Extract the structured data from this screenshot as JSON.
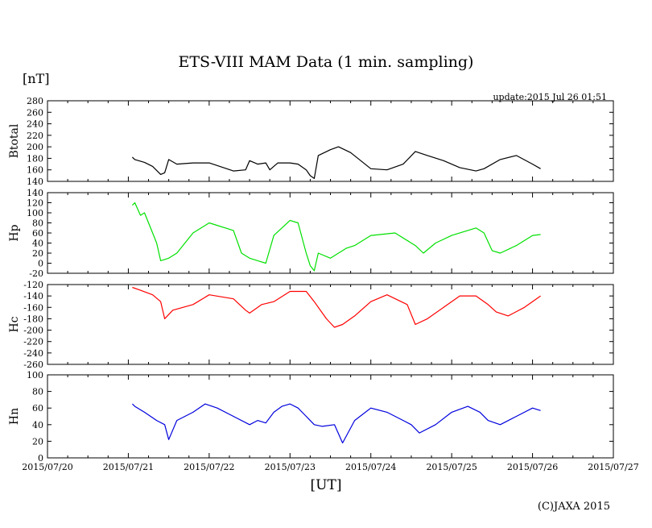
{
  "chart_data": {
    "type": "line",
    "title": "ETS-VIII MAM Data (1 min. sampling)",
    "unit": "[nT]",
    "update": "update:2015 Jul 26 01:51",
    "xlabel": "[UT]",
    "copyright": "(C)JAXA 2015",
    "x_range": [
      0,
      7
    ],
    "x_ticks": [
      "2015/07/20",
      "2015/07/21",
      "2015/07/22",
      "2015/07/23",
      "2015/07/24",
      "2015/07/25",
      "2015/07/26",
      "2015/07/27"
    ],
    "grid": false,
    "panels": [
      {
        "label": "Btotal",
        "color": "#000000",
        "ylim": [
          140,
          280
        ],
        "yticks": [
          140,
          160,
          180,
          200,
          220,
          240,
          260,
          280
        ],
        "x": [
          1.05,
          1.08,
          1.2,
          1.3,
          1.4,
          1.45,
          1.5,
          1.6,
          1.8,
          2.0,
          2.3,
          2.45,
          2.5,
          2.6,
          2.7,
          2.75,
          2.85,
          3.0,
          3.1,
          3.2,
          3.25,
          3.3,
          3.35,
          3.5,
          3.6,
          3.75,
          4.0,
          4.2,
          4.4,
          4.55,
          4.7,
          4.9,
          5.1,
          5.3,
          5.4,
          5.6,
          5.8,
          6.0,
          6.1
        ],
        "y": [
          182,
          178,
          173,
          166,
          152,
          155,
          178,
          170,
          172,
          172,
          158,
          160,
          176,
          170,
          172,
          160,
          172,
          172,
          170,
          160,
          150,
          145,
          185,
          195,
          200,
          190,
          162,
          160,
          170,
          192,
          185,
          176,
          164,
          158,
          162,
          178,
          185,
          170,
          162
        ]
      },
      {
        "label": "Hp",
        "color": "#00e000",
        "ylim": [
          -20,
          140
        ],
        "yticks": [
          -20,
          0,
          20,
          40,
          60,
          80,
          100,
          120,
          140
        ],
        "x": [
          1.05,
          1.08,
          1.15,
          1.2,
          1.3,
          1.35,
          1.4,
          1.5,
          1.6,
          1.8,
          2.0,
          2.3,
          2.4,
          2.5,
          2.6,
          2.7,
          2.8,
          3.0,
          3.1,
          3.2,
          3.25,
          3.3,
          3.35,
          3.5,
          3.7,
          3.8,
          4.0,
          4.3,
          4.55,
          4.65,
          4.8,
          5.0,
          5.3,
          5.4,
          5.5,
          5.6,
          5.8,
          6.0,
          6.1
        ],
        "y": [
          115,
          120,
          95,
          100,
          60,
          40,
          5,
          10,
          20,
          60,
          80,
          65,
          20,
          10,
          5,
          0,
          55,
          85,
          80,
          20,
          -5,
          -15,
          20,
          10,
          30,
          35,
          55,
          60,
          35,
          20,
          40,
          55,
          70,
          60,
          25,
          20,
          35,
          55,
          57
        ]
      },
      {
        "label": "Hc",
        "color": "#ff0000",
        "ylim": [
          -260,
          -120
        ],
        "yticks": [
          -260,
          -240,
          -220,
          -200,
          -180,
          -160,
          -140,
          -120
        ],
        "x": [
          1.05,
          1.15,
          1.3,
          1.4,
          1.45,
          1.55,
          1.8,
          2.0,
          2.3,
          2.45,
          2.5,
          2.65,
          2.8,
          3.0,
          3.2,
          3.3,
          3.45,
          3.55,
          3.65,
          3.8,
          4.0,
          4.2,
          4.45,
          4.55,
          4.7,
          4.9,
          5.1,
          5.3,
          5.45,
          5.55,
          5.7,
          5.9,
          6.1
        ],
        "y": [
          -125,
          -130,
          -138,
          -150,
          -180,
          -165,
          -155,
          -138,
          -145,
          -165,
          -170,
          -155,
          -150,
          -132,
          -132,
          -150,
          -180,
          -195,
          -190,
          -175,
          -150,
          -138,
          -155,
          -190,
          -180,
          -160,
          -140,
          -140,
          -155,
          -168,
          -175,
          -160,
          -140
        ]
      },
      {
        "label": "Hn",
        "color": "#0000dd",
        "ylim": [
          0,
          100
        ],
        "yticks": [
          0,
          20,
          40,
          60,
          80,
          100
        ],
        "x": [
          1.05,
          1.08,
          1.2,
          1.35,
          1.45,
          1.5,
          1.6,
          1.8,
          1.95,
          2.1,
          2.3,
          2.5,
          2.6,
          2.7,
          2.8,
          2.9,
          3.0,
          3.1,
          3.2,
          3.3,
          3.4,
          3.55,
          3.65,
          3.8,
          4.0,
          4.2,
          4.4,
          4.5,
          4.6,
          4.8,
          5.0,
          5.2,
          5.35,
          5.45,
          5.6,
          5.8,
          6.0,
          6.1
        ],
        "y": [
          65,
          62,
          55,
          45,
          40,
          22,
          45,
          55,
          65,
          60,
          50,
          40,
          45,
          42,
          55,
          62,
          65,
          60,
          50,
          40,
          38,
          40,
          18,
          45,
          60,
          55,
          45,
          40,
          30,
          40,
          55,
          62,
          55,
          45,
          40,
          50,
          60,
          57
        ]
      }
    ]
  }
}
